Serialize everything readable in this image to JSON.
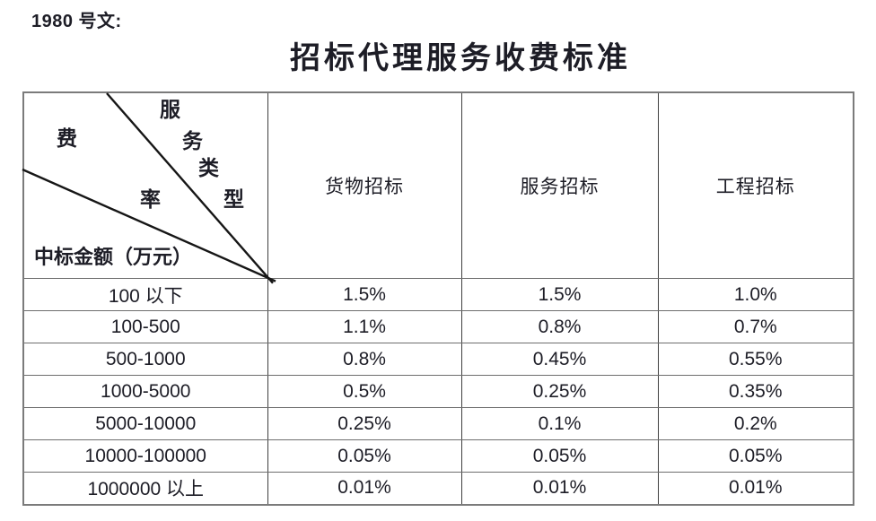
{
  "doc": {
    "number": "1980 号文:",
    "title": "招标代理服务收费标准"
  },
  "table": {
    "corner": {
      "type_label_chars": [
        "服",
        "务",
        "类",
        "型"
      ],
      "fee_label_chars": [
        "费",
        "率"
      ],
      "row_axis_label": "中标金额（万元）"
    },
    "columns": [
      "货物招标",
      "服务招标",
      "工程招标"
    ],
    "rows": [
      {
        "range": "100 以下",
        "values": [
          "1.5%",
          "1.5%",
          "1.0%"
        ]
      },
      {
        "range": "100-500",
        "values": [
          "1.1%",
          "0.8%",
          "0.7%"
        ]
      },
      {
        "range": "500-1000",
        "values": [
          "0.8%",
          "0.45%",
          "0.55%"
        ]
      },
      {
        "range": "1000-5000",
        "values": [
          "0.5%",
          "0.25%",
          "0.35%"
        ]
      },
      {
        "range": "5000-10000",
        "values": [
          "0.25%",
          "0.1%",
          "0.2%"
        ]
      },
      {
        "range": "10000-100000",
        "values": [
          "0.05%",
          "0.05%",
          "0.05%"
        ]
      },
      {
        "range": "1000000 以上",
        "values": [
          "0.01%",
          "0.01%",
          "0.01%"
        ]
      }
    ]
  },
  "colors": {
    "background": "#ffffff",
    "text": "#1d1d26",
    "border_horizontal": "#6e6e6e",
    "border_vertical": "#3f3f3f",
    "diagonal_line": "#161616"
  }
}
